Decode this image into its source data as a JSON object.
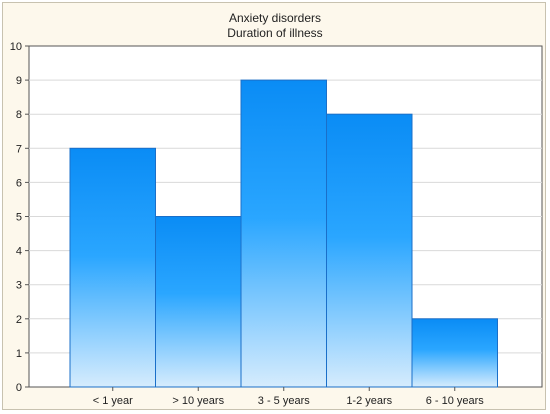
{
  "chart_data": {
    "type": "bar",
    "title": "Anxiety disorders",
    "subtitle": "Duration of illness",
    "xlabel": "",
    "ylabel": "",
    "categories": [
      "< 1 year",
      "> 10 years",
      "3 - 5 years",
      "1-2 years",
      "6 - 10 years"
    ],
    "values": [
      7,
      5,
      9,
      8,
      2
    ],
    "ylim": [
      0,
      10
    ],
    "yticks": [
      0,
      1,
      2,
      3,
      4,
      5,
      6,
      7,
      8,
      9,
      10
    ],
    "grid": true,
    "legend": "none",
    "colors": {
      "bar_top": "#0a8cf5",
      "bar_bottom": "#d6ecfd",
      "bar_edge": "#1a6fc9",
      "plot_bg": "#ffffff",
      "frame_bg": "#fdf8ec",
      "grid": "#d9d9d9"
    }
  }
}
